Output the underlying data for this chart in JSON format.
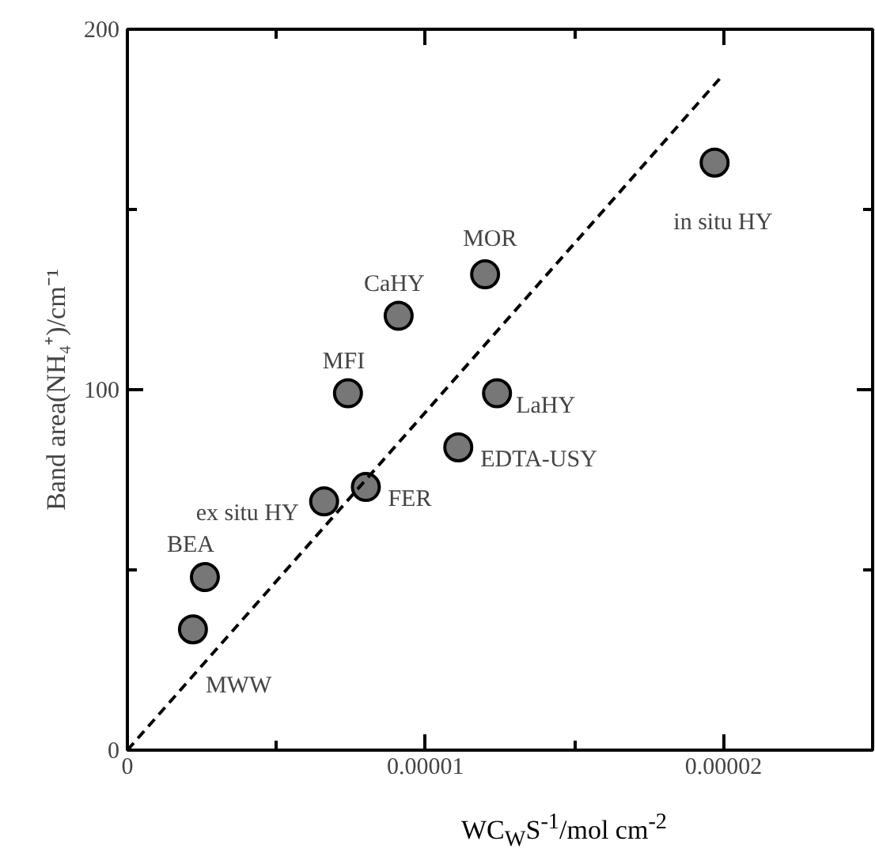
{
  "chart_data": {
    "type": "scatter",
    "xlabel": "WC$_{W}$S$^{-1}$/mol cm$^{-2}$",
    "ylabel": "Band area(NH₄⁺)/cm⁻¹",
    "xlim": [
      0,
      2.5e-05
    ],
    "ylim": [
      0,
      200
    ],
    "xticks": [
      0,
      {
        "value": 5e-06,
        "label": null
      },
      {
        "value": 1e-05,
        "label": "0.00001"
      },
      {
        "value": 1.5e-05,
        "label": null
      },
      {
        "value": 2e-05,
        "label": "0.00002"
      }
    ],
    "yticks": [
      0,
      {
        "value": 50,
        "label": null
      },
      100,
      {
        "value": 150,
        "label": null
      },
      200
    ],
    "grid": false,
    "marker": "circle",
    "series": [
      {
        "color": "#777777",
        "x": [
          2.2e-06,
          2.6e-06,
          6.6e-06,
          8e-06,
          7.4e-06,
          1.11e-05,
          1.24e-05,
          9.1e-06,
          1.2e-05,
          1.97e-05
        ],
        "values": [
          33.5,
          48,
          69,
          73,
          99,
          84,
          99,
          120.5,
          132,
          163
        ]
      },
      {
        "type": "line",
        "color": "#000000",
        "line_style": "dashed",
        "marker": "none",
        "x": [
          0,
          2e-05
        ],
        "values": [
          0,
          187.5
        ]
      }
    ],
    "annotations": [
      {
        "text": "MWW",
        "x": 2.2e-06,
        "y": 33.5
      },
      {
        "text": "BEA",
        "x": 2.6e-06,
        "y": 48
      },
      {
        "text": "ex situ HY",
        "x": 6.6e-06,
        "y": 69
      },
      {
        "text": "FER",
        "x": 8e-06,
        "y": 73
      },
      {
        "text": "MFI",
        "x": 7.4e-06,
        "y": 99
      },
      {
        "text": "EDTA-USY",
        "x": 1.11e-05,
        "y": 84
      },
      {
        "text": "LaHY",
        "x": 1.24e-05,
        "y": 99
      },
      {
        "text": "CaHY",
        "x": 9.1e-06,
        "y": 120.5
      },
      {
        "text": "MOR",
        "x": 1.2e-05,
        "y": 132
      },
      {
        "text": "in situ HY",
        "x": 1.97e-05,
        "y": 163
      }
    ]
  }
}
